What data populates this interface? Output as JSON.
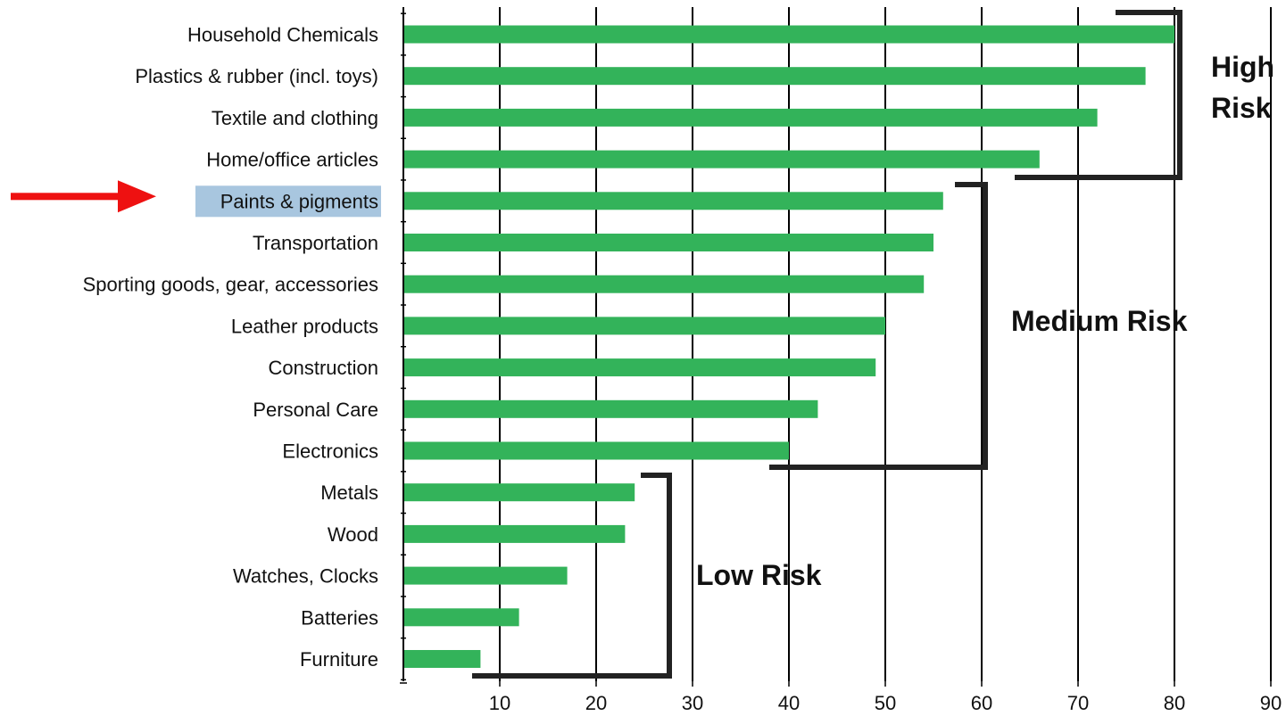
{
  "chart_data": {
    "type": "bar",
    "orientation": "horizontal",
    "categories": [
      "Household Chemicals",
      "Plastics & rubber (incl. toys)",
      "Textile and clothing",
      "Home/office articles",
      "Paints & pigments",
      "Transportation",
      "Sporting goods, gear, accessories",
      "Leather products",
      "Construction",
      "Personal Care",
      "Electronics",
      "Metals",
      "Wood",
      "Watches, Clocks",
      "Batteries",
      "Furniture"
    ],
    "values": [
      80,
      77,
      72,
      66,
      56,
      55,
      54,
      50,
      49,
      43,
      40,
      24,
      23,
      17,
      12,
      8
    ],
    "x_ticks": [
      10,
      20,
      30,
      40,
      50,
      60,
      70,
      80,
      90
    ],
    "xlim": [
      0,
      90
    ],
    "grid": true,
    "bar_color": "#33b35a",
    "highlighted_category": "Paints & pigments",
    "highlight_color": "#a8c6df",
    "arrow_color": "#ee1111",
    "groups": [
      {
        "label_lines": [
          "High",
          "Risk"
        ],
        "first": 0,
        "last": 3
      },
      {
        "label_lines": [
          "Medium Risk"
        ],
        "first": 4,
        "last": 10
      },
      {
        "label_lines": [
          "Low Risk"
        ],
        "first": 11,
        "last": 15
      }
    ]
  }
}
